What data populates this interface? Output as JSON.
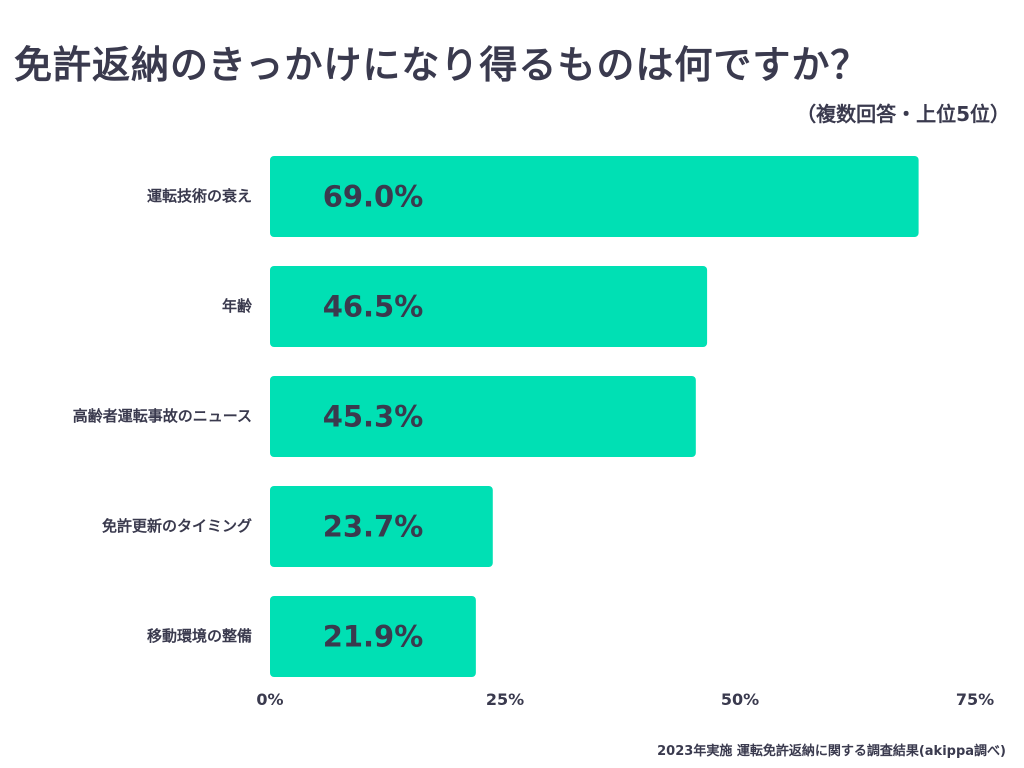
{
  "chart_data": {
    "type": "bar",
    "orientation": "horizontal",
    "title": "免許返納のきっかけになり得るものは何ですか？",
    "subtitle": "（複数回答・上位5位）",
    "categories": [
      "運転技術の衰え",
      "年齢",
      "高齢者運転事故のニュース",
      "免許更新のタイミング",
      "移動環境の整備"
    ],
    "values": [
      69.0,
      46.5,
      45.3,
      23.7,
      21.9
    ],
    "value_labels": [
      "69.0%",
      "46.5%",
      "45.3%",
      "23.7%",
      "21.9%"
    ],
    "xlim": [
      0,
      75
    ],
    "x_ticks": [
      0,
      25,
      50,
      75
    ],
    "x_tick_labels": [
      "0%",
      "25%",
      "50%",
      "75%"
    ],
    "grid": false,
    "bar_color": "#00e0b4",
    "source": "2023年実施 運転免許返納に関する調査結果(akippa調べ)"
  }
}
